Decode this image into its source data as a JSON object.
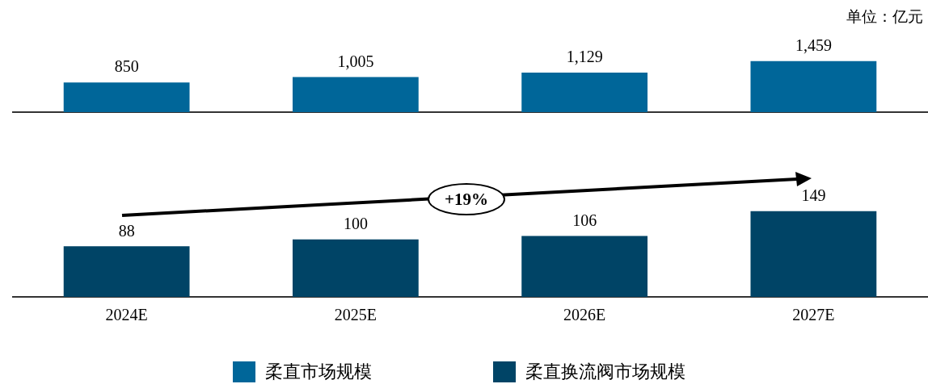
{
  "chart_data": [
    {
      "type": "bar",
      "categories": [
        null,
        null,
        null,
        null
      ],
      "series": [
        {
          "name": "柔直市场规模",
          "color": "#006699",
          "values": [
            850,
            1005,
            1129,
            1459
          ],
          "value_labels": [
            "850",
            "1,005",
            "1,129",
            "1,459"
          ]
        }
      ],
      "grid": false,
      "legend": "bottom",
      "annotations": [
        "单位：亿元"
      ]
    },
    {
      "type": "bar",
      "categories": [
        "2024E",
        "2025E",
        "2026E",
        "2027E"
      ],
      "series": [
        {
          "name": "柔直换流阀市场规模",
          "color": "#004466",
          "values": [
            88,
            100,
            106,
            149
          ],
          "value_labels": [
            "88",
            "100",
            "106",
            "149"
          ]
        }
      ],
      "grid": false,
      "legend": "bottom",
      "annotations": [
        "+19%"
      ]
    }
  ]
}
